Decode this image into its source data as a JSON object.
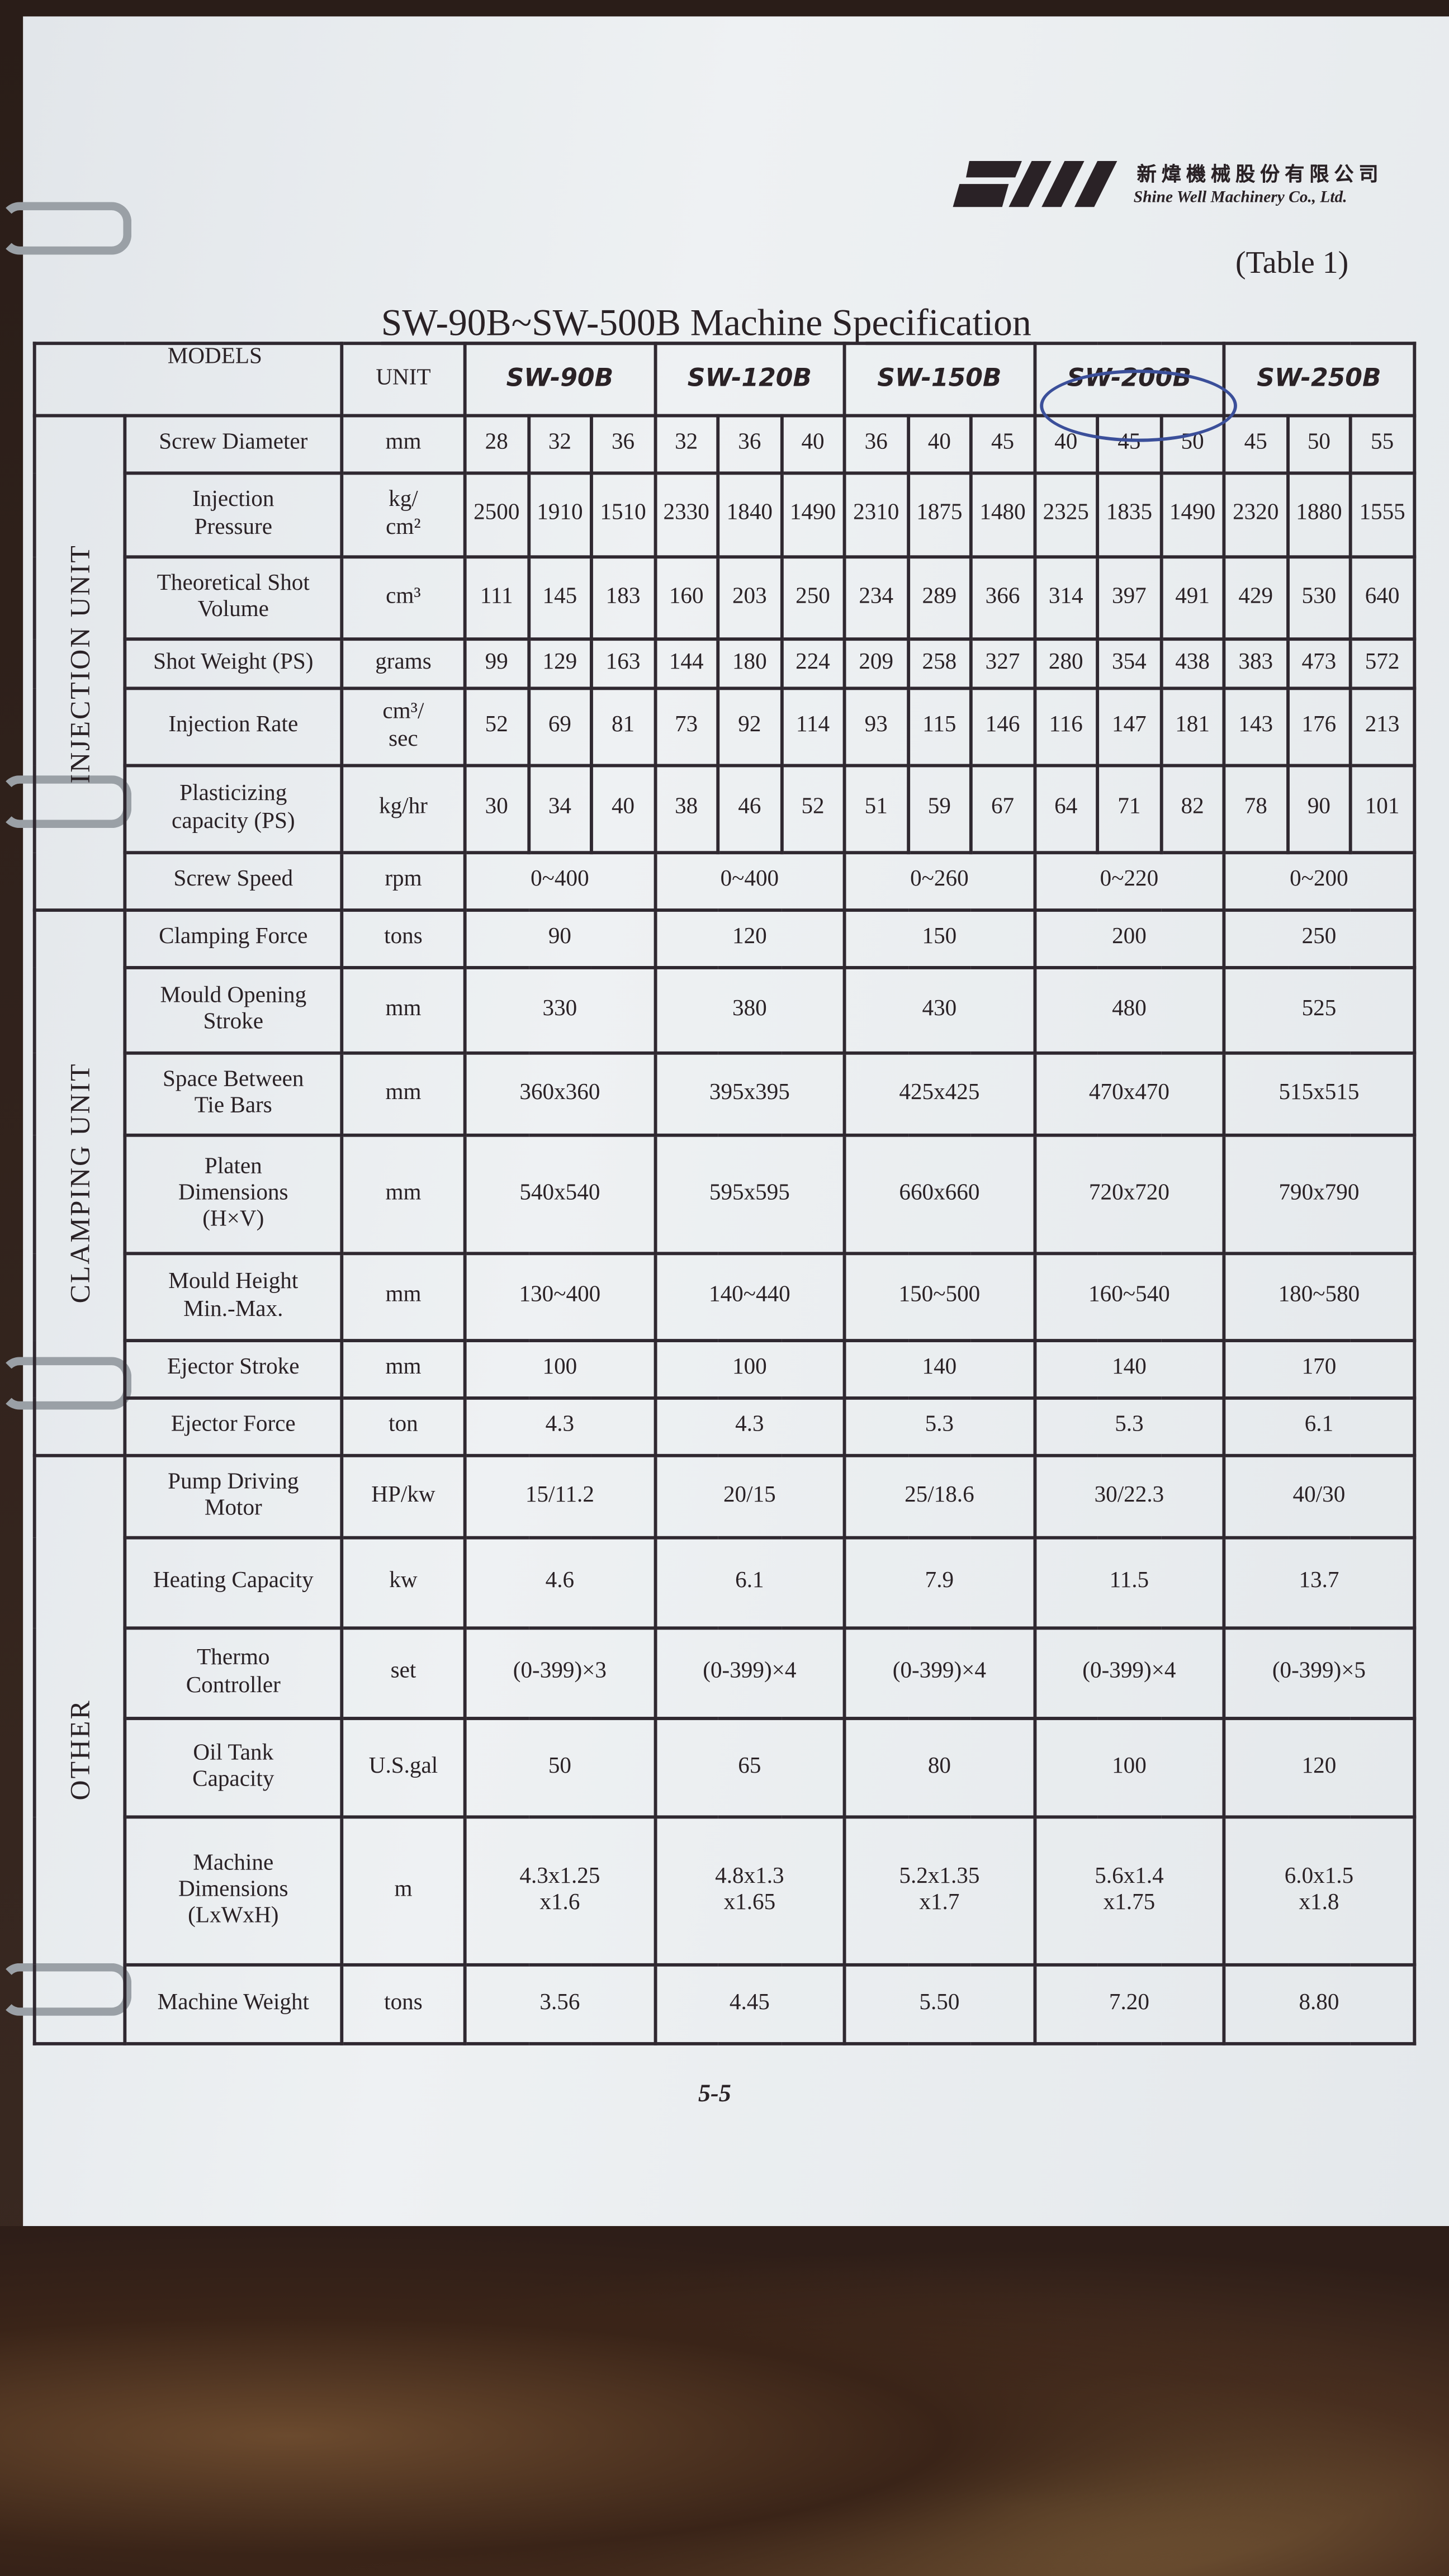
{
  "header": {
    "company_cn": "新煒機械股份有限公司",
    "company_en": "Shine Well Machinery Co., Ltd.",
    "logo_text": "SW",
    "table_number": "(Table 1)",
    "title": "SW-90B~SW-500B Machine Specification"
  },
  "table": {
    "models_label": "MODELS",
    "unit_label": "UNIT",
    "models": [
      "SW-90B",
      "SW-120B",
      "SW-150B",
      "SW-200B",
      "SW-250B"
    ],
    "circled_model": "SW-200B",
    "sections": [
      {
        "name": "INJECTION UNIT",
        "rows": [
          {
            "label": "Screw Diameter",
            "unit": "mm",
            "values": [
              "28",
              "32",
              "36",
              "32",
              "36",
              "40",
              "36",
              "40",
              "45",
              "40",
              "45",
              "50",
              "45",
              "50",
              "55"
            ]
          },
          {
            "label": "Injection\nPressure",
            "unit": "kg/\ncm²",
            "values": [
              "2500",
              "1910",
              "1510",
              "2330",
              "1840",
              "1490",
              "2310",
              "1875",
              "1480",
              "2325",
              "1835",
              "1490",
              "2320",
              "1880",
              "1555"
            ]
          },
          {
            "label": "Theoretical Shot\nVolume",
            "unit": "cm³",
            "values": [
              "111",
              "145",
              "183",
              "160",
              "203",
              "250",
              "234",
              "289",
              "366",
              "314",
              "397",
              "491",
              "429",
              "530",
              "640"
            ]
          },
          {
            "label": "Shot Weight (PS)",
            "unit": "grams",
            "values": [
              "99",
              "129",
              "163",
              "144",
              "180",
              "224",
              "209",
              "258",
              "327",
              "280",
              "354",
              "438",
              "383",
              "473",
              "572"
            ]
          },
          {
            "label": "Injection Rate",
            "unit": "cm³/\nsec",
            "values": [
              "52",
              "69",
              "81",
              "73",
              "92",
              "114",
              "93",
              "115",
              "146",
              "116",
              "147",
              "181",
              "143",
              "176",
              "213"
            ]
          },
          {
            "label": "Plasticizing\ncapacity (PS)",
            "unit": "kg/hr",
            "values": [
              "30",
              "34",
              "40",
              "38",
              "46",
              "52",
              "51",
              "59",
              "67",
              "64",
              "71",
              "82",
              "78",
              "90",
              "101"
            ]
          },
          {
            "label": "Screw Speed",
            "unit": "rpm",
            "values": [
              "0~400",
              "0~400",
              "0~260",
              "0~220",
              "0~200"
            ]
          }
        ]
      },
      {
        "name": "CLAMPING UNIT",
        "rows": [
          {
            "label": "Clamping Force",
            "unit": "tons",
            "values": [
              "90",
              "120",
              "150",
              "200",
              "250"
            ]
          },
          {
            "label": "Mould Opening\nStroke",
            "unit": "mm",
            "values": [
              "330",
              "380",
              "430",
              "480",
              "525"
            ]
          },
          {
            "label": "Space Between\nTie Bars",
            "unit": "mm",
            "values": [
              "360x360",
              "395x395",
              "425x425",
              "470x470",
              "515x515"
            ]
          },
          {
            "label": "Platen\nDimensions\n(H×V)",
            "unit": "mm",
            "values": [
              "540x540",
              "595x595",
              "660x660",
              "720x720",
              "790x790"
            ]
          },
          {
            "label": "Mould Height\nMin.-Max.",
            "unit": "mm",
            "values": [
              "130~400",
              "140~440",
              "150~500",
              "160~540",
              "180~580"
            ]
          },
          {
            "label": "Ejector Stroke",
            "unit": "mm",
            "values": [
              "100",
              "100",
              "140",
              "140",
              "170"
            ]
          },
          {
            "label": "Ejector Force",
            "unit": "ton",
            "values": [
              "4.3",
              "4.3",
              "5.3",
              "5.3",
              "6.1"
            ]
          }
        ]
      },
      {
        "name": "OTHER",
        "rows": [
          {
            "label": "Pump Driving\nMotor",
            "unit": "HP/kw",
            "values": [
              "15/11.2",
              "20/15",
              "25/18.6",
              "30/22.3",
              "40/30"
            ]
          },
          {
            "label": "Heating Capacity",
            "unit": "kw",
            "values": [
              "4.6",
              "6.1",
              "7.9",
              "11.5",
              "13.7"
            ]
          },
          {
            "label": "Thermo\nController",
            "unit": "set",
            "values": [
              "(0-399)×3",
              "(0-399)×4",
              "(0-399)×4",
              "(0-399)×4",
              "(0-399)×5"
            ]
          },
          {
            "label": "Oil Tank\nCapacity",
            "unit": "U.S.gal",
            "values": [
              "50",
              "65",
              "80",
              "100",
              "120"
            ]
          },
          {
            "label": "Machine\nDimensions\n(LxWxH)",
            "unit": "m",
            "values": [
              "4.3x1.25\nx1.6",
              "4.8x1.3\nx1.65",
              "5.2x1.35\nx1.7",
              "5.6x1.4\nx1.75",
              "6.0x1.5\nx1.8"
            ]
          },
          {
            "label": "Machine Weight",
            "unit": "tons",
            "values": [
              "3.56",
              "4.45",
              "5.50",
              "7.20",
              "8.80"
            ]
          }
        ]
      }
    ]
  },
  "footer": {
    "page_number": "5-5"
  },
  "colors": {
    "paper": "#e8ecef",
    "ink": "#2f2830",
    "pen_circle": "#3b4f9a"
  }
}
